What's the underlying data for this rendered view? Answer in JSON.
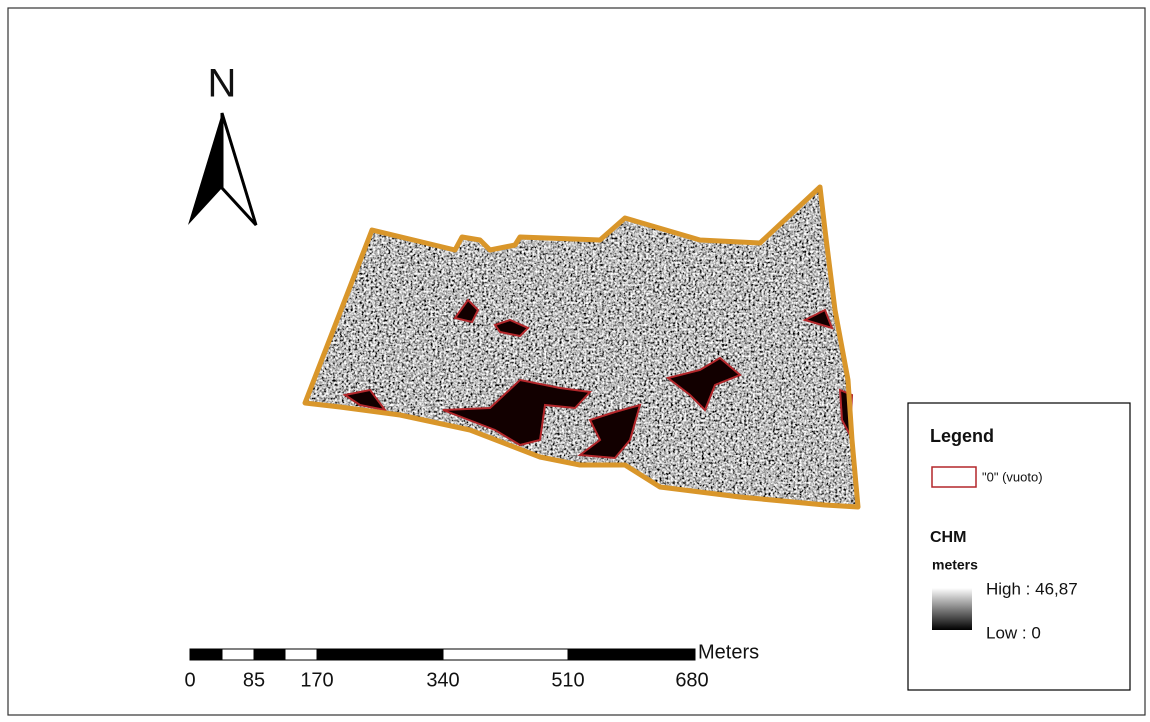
{
  "north_arrow": {
    "label": "N"
  },
  "scale_bar": {
    "unit": "Meters",
    "labels": [
      "0",
      "85",
      "170",
      "340",
      "510",
      "680"
    ]
  },
  "legend": {
    "title": "Legend",
    "items": [
      {
        "label": "\"0\" (vuoto)"
      }
    ],
    "raster": {
      "title": "CHM",
      "unit": "meters",
      "high": "High : 46,87",
      "low": "Low : 0"
    }
  }
}
